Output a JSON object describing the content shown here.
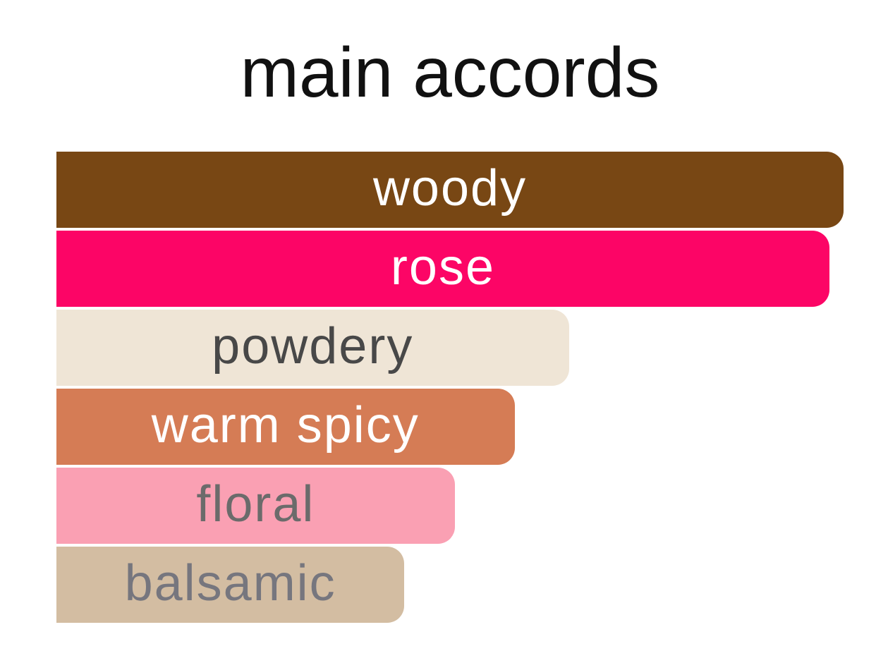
{
  "page": {
    "background_color": "#ffffff"
  },
  "chart_data": {
    "type": "bar",
    "orientation": "horizontal",
    "title": "main accords",
    "title_color": "#111111",
    "xlabel": "",
    "ylabel": "",
    "legend": false,
    "grid": false,
    "axes_visible": false,
    "value_unit": "percent of longest bar (accord strength, estimated from pixel widths)",
    "categories": [
      "woody",
      "rose",
      "powdery",
      "warm spicy",
      "floral",
      "balsamic"
    ],
    "values": [
      100,
      98.2,
      65.1,
      58.2,
      50.6,
      44.2
    ],
    "bars": [
      {
        "label": "woody",
        "width_pct": 100,
        "bar_color": "#784714",
        "label_color": "#ffffff"
      },
      {
        "label": "rose",
        "width_pct": 98.2,
        "bar_color": "#FC0566",
        "label_color": "#ffffff"
      },
      {
        "label": "powdery",
        "width_pct": 65.1,
        "bar_color": "#EFE5D6",
        "label_color": "#484848"
      },
      {
        "label": "warm spicy",
        "width_pct": 58.2,
        "bar_color": "#D57C55",
        "label_color": "#ffffff"
      },
      {
        "label": "floral",
        "width_pct": 50.6,
        "bar_color": "#FAA0B3",
        "label_color": "#6B6B6B"
      },
      {
        "label": "balsamic",
        "width_pct": 44.2,
        "bar_color": "#D3BDA2",
        "label_color": "#76767E"
      }
    ]
  }
}
